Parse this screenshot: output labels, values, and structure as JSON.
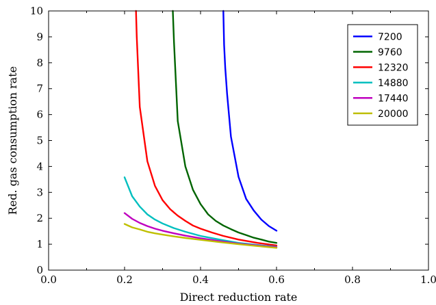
{
  "chart_data": {
    "type": "line",
    "title": "",
    "xlabel": "Direct reduction rate",
    "ylabel": "Red. gas consumption rate",
    "xlim": [
      0.0,
      1.0
    ],
    "ylim": [
      0,
      10
    ],
    "xticks": [
      "0.0",
      "0.2",
      "0.4",
      "0.6",
      "0.8",
      "1.0"
    ],
    "yticks": [
      "0",
      "1",
      "2",
      "3",
      "4",
      "5",
      "6",
      "7",
      "8",
      "9",
      "10"
    ],
    "grid": false,
    "legend_position": "top-right",
    "series": [
      {
        "name": "7200",
        "color": "#0000ff",
        "x": [
          0.46,
          0.462,
          0.465,
          0.47,
          0.48,
          0.5,
          0.52,
          0.54,
          0.56,
          0.58,
          0.6
        ],
        "y": [
          10.0,
          8.7,
          7.8,
          6.8,
          5.15,
          3.6,
          2.75,
          2.3,
          1.95,
          1.7,
          1.52
        ]
      },
      {
        "name": "9760",
        "color": "#006400",
        "x": [
          0.327,
          0.33,
          0.34,
          0.36,
          0.38,
          0.4,
          0.42,
          0.44,
          0.46,
          0.48,
          0.5,
          0.52,
          0.54,
          0.56,
          0.58,
          0.6
        ],
        "y": [
          10.0,
          8.8,
          5.75,
          4.0,
          3.1,
          2.55,
          2.15,
          1.9,
          1.72,
          1.58,
          1.45,
          1.35,
          1.25,
          1.18,
          1.1,
          1.05
        ]
      },
      {
        "name": "12320",
        "color": "#ff0000",
        "x": [
          0.23,
          0.232,
          0.24,
          0.26,
          0.28,
          0.3,
          0.32,
          0.34,
          0.36,
          0.38,
          0.4,
          0.43,
          0.46,
          0.5,
          0.55,
          0.6
        ],
        "y": [
          10.0,
          9.0,
          6.3,
          4.2,
          3.25,
          2.7,
          2.35,
          2.1,
          1.9,
          1.72,
          1.6,
          1.45,
          1.32,
          1.18,
          1.05,
          0.95
        ]
      },
      {
        "name": "14880",
        "color": "#00bfbf",
        "x": [
          0.2,
          0.22,
          0.24,
          0.26,
          0.28,
          0.3,
          0.33,
          0.36,
          0.4,
          0.45,
          0.5,
          0.55,
          0.6
        ],
        "y": [
          3.58,
          2.85,
          2.45,
          2.15,
          1.95,
          1.8,
          1.62,
          1.48,
          1.32,
          1.18,
          1.05,
          0.97,
          0.9
        ]
      },
      {
        "name": "17440",
        "color": "#bf00bf",
        "x": [
          0.2,
          0.22,
          0.24,
          0.26,
          0.28,
          0.3,
          0.33,
          0.36,
          0.4,
          0.45,
          0.5,
          0.55,
          0.6
        ],
        "y": [
          2.2,
          1.98,
          1.82,
          1.7,
          1.6,
          1.52,
          1.42,
          1.33,
          1.23,
          1.12,
          1.02,
          0.95,
          0.88
        ]
      },
      {
        "name": "20000",
        "color": "#bfbf00",
        "x": [
          0.2,
          0.22,
          0.24,
          0.26,
          0.28,
          0.3,
          0.33,
          0.36,
          0.4,
          0.45,
          0.5,
          0.55,
          0.6
        ],
        "y": [
          1.78,
          1.65,
          1.57,
          1.48,
          1.42,
          1.37,
          1.3,
          1.24,
          1.17,
          1.08,
          1.0,
          0.93,
          0.86
        ]
      }
    ]
  }
}
